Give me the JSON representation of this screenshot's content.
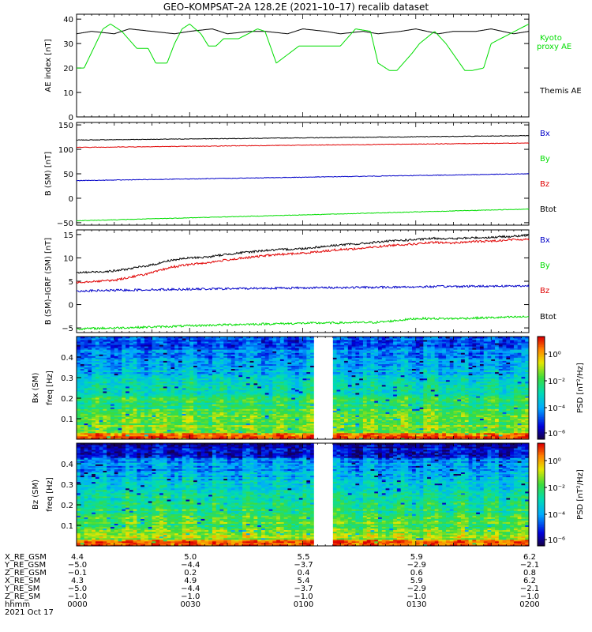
{
  "title": "GEO–KOMPSAT–2A 128.2E (2021–10–17) recalib dataset",
  "colors": {
    "black": "#000000",
    "blue": "#0000c8",
    "green": "#00dd00",
    "red": "#e00000"
  },
  "chart_data": [
    {
      "type": "line",
      "panel": "AE index",
      "ylabel": "AE index [nT]",
      "ylim": [
        0,
        42
      ],
      "yticks": [
        0,
        10,
        20,
        30,
        40
      ],
      "legend": [
        {
          "name": "Kyoto proxy AE",
          "color": "#00dd00"
        },
        {
          "name": "Themis AE",
          "color": "#000000"
        }
      ],
      "series": [
        {
          "name": "Themis AE",
          "color": "#000000",
          "x": [
            0,
            4,
            10,
            14,
            20,
            26,
            30,
            36,
            40,
            46,
            50,
            56,
            60,
            66,
            70,
            76,
            80,
            86,
            90,
            96,
            100,
            106,
            110,
            116,
            120
          ],
          "y": [
            34,
            35,
            34,
            36,
            35,
            34,
            35,
            36,
            34,
            35,
            35,
            34,
            36,
            35,
            34,
            35,
            34,
            35,
            36,
            34,
            35,
            35,
            36,
            34,
            35
          ]
        },
        {
          "name": "Kyoto proxy AE",
          "color": "#00dd00",
          "x": [
            0,
            2,
            7,
            9,
            12,
            16,
            19,
            21,
            24,
            26,
            28,
            30,
            33,
            35,
            37,
            39,
            43,
            48,
            50,
            53,
            59,
            65,
            70,
            74,
            78,
            80,
            83,
            85,
            89,
            91,
            95,
            98,
            103,
            105,
            108,
            110,
            120
          ],
          "y": [
            20,
            20,
            36,
            38,
            35,
            28,
            28,
            22,
            22,
            30,
            36,
            38,
            34,
            29,
            29,
            32,
            32,
            36,
            35,
            22,
            29,
            29,
            29,
            36,
            35,
            22,
            19,
            19,
            26,
            30,
            35,
            30,
            19,
            19,
            20,
            30,
            38
          ]
        }
      ]
    },
    {
      "type": "line",
      "panel": "B (SM)",
      "ylabel": "B (SM) [nT]",
      "ylim": [
        -55,
        155
      ],
      "yticks": [
        -50,
        0,
        50,
        100,
        150
      ],
      "legend": [
        {
          "name": "Bx",
          "color": "#0000c8"
        },
        {
          "name": "By",
          "color": "#00dd00"
        },
        {
          "name": "Bz",
          "color": "#e00000"
        },
        {
          "name": "Btot",
          "color": "#000000"
        }
      ],
      "series": [
        {
          "name": "Btot",
          "color": "#000000",
          "x": [
            0,
            120
          ],
          "y": [
            119,
            128
          ]
        },
        {
          "name": "Bz",
          "color": "#e00000",
          "x": [
            0,
            120
          ],
          "y": [
            104,
            113
          ]
        },
        {
          "name": "Bx",
          "color": "#0000c8",
          "x": [
            0,
            120
          ],
          "y": [
            36,
            50
          ]
        },
        {
          "name": "By",
          "color": "#00dd00",
          "x": [
            0,
            120
          ],
          "y": [
            -46,
            -22
          ]
        }
      ]
    },
    {
      "type": "line",
      "panel": "B (SM) - IGRF (SM)",
      "ylabel": "B (SM)–IGRF (SM) [nT]",
      "ylim": [
        -6,
        16
      ],
      "yticks": [
        -5,
        0,
        5,
        10,
        15
      ],
      "legend": [
        {
          "name": "Bx",
          "color": "#0000c8"
        },
        {
          "name": "By",
          "color": "#00dd00"
        },
        {
          "name": "Bz",
          "color": "#e00000"
        },
        {
          "name": "Btot",
          "color": "#000000"
        }
      ],
      "series": [
        {
          "name": "Btot",
          "color": "#000000",
          "x": [
            0,
            10,
            15,
            20,
            25,
            30,
            35,
            40,
            45,
            50,
            55,
            60,
            65,
            70,
            75,
            80,
            85,
            90,
            95,
            100,
            105,
            110,
            115,
            120
          ],
          "y": [
            6.8,
            7.2,
            7.8,
            8.5,
            9.5,
            10.0,
            10.2,
            10.8,
            11.2,
            11.6,
            11.8,
            12.0,
            12.4,
            12.8,
            13.0,
            13.4,
            13.7,
            13.9,
            14.2,
            14.1,
            14.3,
            14.4,
            14.6,
            14.8
          ]
        },
        {
          "name": "Bz",
          "color": "#e00000",
          "x": [
            0,
            10,
            15,
            20,
            25,
            30,
            35,
            40,
            45,
            50,
            55,
            60,
            65,
            70,
            75,
            80,
            85,
            90,
            95,
            100,
            105,
            110,
            115,
            120
          ],
          "y": [
            4.8,
            5.2,
            6.0,
            6.8,
            8.0,
            8.6,
            9.0,
            9.6,
            10.0,
            10.5,
            10.8,
            11.0,
            11.4,
            11.8,
            12.0,
            12.4,
            12.8,
            13.0,
            13.3,
            13.2,
            13.5,
            13.6,
            13.9,
            14.0
          ]
        },
        {
          "name": "Bx",
          "color": "#0000c8",
          "x": [
            0,
            20,
            40,
            60,
            80,
            100,
            120
          ],
          "y": [
            2.9,
            3.2,
            3.4,
            3.6,
            3.7,
            3.9,
            4.0
          ]
        },
        {
          "name": "By",
          "color": "#00dd00",
          "x": [
            0,
            20,
            40,
            60,
            80,
            90,
            100,
            120
          ],
          "y": [
            -5.2,
            -4.8,
            -4.3,
            -4.0,
            -3.8,
            -3.0,
            -3.0,
            -2.6
          ]
        }
      ]
    },
    {
      "type": "heatmap",
      "panel": "Bx (SM)",
      "ylabel": "Bx (SM) freq [Hz]",
      "yticks": [
        0.1,
        0.2,
        0.3,
        0.4
      ],
      "ylim": [
        0,
        0.5
      ],
      "gap": [
        63,
        68
      ],
      "colorbar": {
        "label": "PSD [nT²/Hz]",
        "ticks": [
          "10⁰",
          "10⁻²",
          "10⁻⁴",
          "10⁻⁶"
        ]
      }
    },
    {
      "type": "heatmap",
      "panel": "Bz (SM)",
      "ylabel": "Bz (SM) freq [Hz]",
      "yticks": [
        0.1,
        0.2,
        0.3,
        0.4
      ],
      "ylim": [
        0,
        0.5
      ],
      "gap": [
        63,
        68
      ],
      "colorbar": {
        "label": "PSD [nT²/Hz]",
        "ticks": [
          "10⁰",
          "10⁻²",
          "10⁻⁴",
          "10⁻⁶"
        ]
      }
    }
  ],
  "orbit_table": {
    "row_labels": [
      "X_RE_GSM",
      "Y_RE_GSM",
      "Z_RE_GSM",
      "X_RE_SM",
      "Y_RE_SM",
      "Z_RE_SM",
      "hhmm",
      "2021 Oct 17"
    ],
    "columns": [
      [
        "4.4",
        "−5.0",
        "−0.1",
        "4.3",
        "−5.0",
        "−1.0",
        "0000"
      ],
      [
        "5.0",
        "−4.4",
        "0.2",
        "4.9",
        "−4.4",
        "−1.0",
        "0030"
      ],
      [
        "5.5",
        "−3.7",
        "0.4",
        "5.4",
        "−3.7",
        "−1.0",
        "0100"
      ],
      [
        "5.9",
        "−2.9",
        "0.6",
        "5.9",
        "−2.9",
        "−1.0",
        "0130"
      ],
      [
        "6.2",
        "−2.1",
        "0.8",
        "6.2",
        "−2.1",
        "−1.0",
        "0200"
      ]
    ]
  }
}
